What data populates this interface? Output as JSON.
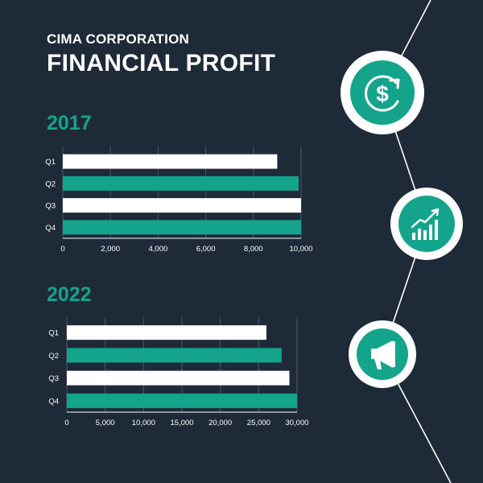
{
  "header": {
    "company": "CIMA CORPORATION",
    "title": "FINANCIAL PROFIT"
  },
  "colors": {
    "background": "#1f2a38",
    "accent": "#14a38b",
    "bar_light": "#ffffff",
    "text": "#ffffff"
  },
  "icons": [
    "dollar-cycle-icon",
    "growth-chart-icon",
    "megaphone-icon"
  ],
  "chart_data": [
    {
      "type": "bar",
      "orientation": "horizontal",
      "title": "2017",
      "categories": [
        "Q1",
        "Q2",
        "Q3",
        "Q4"
      ],
      "values": [
        9000,
        9900,
        10000,
        10000
      ],
      "xlim": [
        0,
        10000
      ],
      "xticks": [
        "0",
        "2,000",
        "4,000",
        "6,000",
        "8,000",
        "10,000"
      ],
      "grid": true
    },
    {
      "type": "bar",
      "orientation": "horizontal",
      "title": "2022",
      "categories": [
        "Q1",
        "Q2",
        "Q3",
        "Q4"
      ],
      "values": [
        26000,
        28000,
        29000,
        30000
      ],
      "xlim": [
        0,
        30000
      ],
      "xticks": [
        "0",
        "5,000",
        "10,000",
        "15,000",
        "20,000",
        "25,000",
        "30,000"
      ],
      "grid": true
    }
  ]
}
